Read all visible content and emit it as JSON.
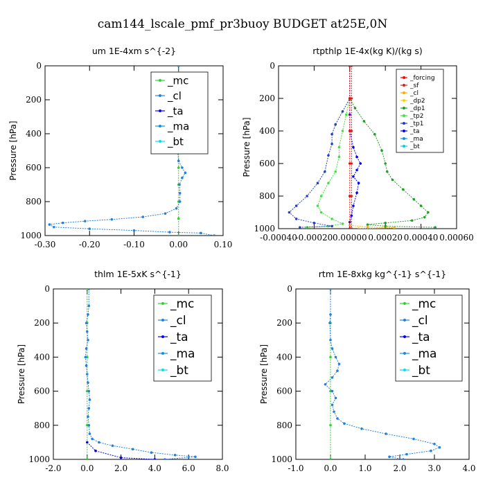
{
  "figure": {
    "title": "cam144_lscale_pmf_pr3buoy  BUDGET at25E,0N"
  },
  "colors": {
    "forcing": "#ff0000",
    "sf": "#d82020",
    "cl": "#ffaa00",
    "dp2": "#ffd000",
    "dp1": "#20a020",
    "tp2": "#40e040",
    "tp1": "#2040c0",
    "ta": "#0000ff",
    "ma": "#1090e0",
    "bt": "#00d0e0",
    "mc": "#30d030",
    "cl_blue": "#2080e0",
    "bt_cyan": "#00e0f0"
  },
  "chart_data": [
    {
      "type": "line",
      "title": "um   1E-4xm  s^{-2}",
      "ylabel": "Pressure [hPa]",
      "xlim": [
        -0.3,
        0.1
      ],
      "ylim": [
        0,
        1000
      ],
      "xticks": [
        "-0.30",
        "-0.20",
        "-0.10",
        "0.00",
        "0.10"
      ],
      "xtick_values": [
        -0.3,
        -0.2,
        -0.1,
        0.0,
        0.1
      ],
      "yticks": [
        "0",
        "200",
        "400",
        "600",
        "800",
        "1000"
      ],
      "legend": [
        "_mc",
        "_cl",
        "_ta",
        "_ma",
        "_bt"
      ],
      "series": [
        {
          "name": "_mc",
          "color": "#30d030",
          "points": [
            [
              0.0,
              0
            ],
            [
              0.0,
              100
            ],
            [
              0.0,
              200
            ],
            [
              0.0,
              300
            ],
            [
              0.0,
              400
            ],
            [
              0.0,
              500
            ],
            [
              0.0,
              600
            ],
            [
              0.0,
              700
            ],
            [
              0.0,
              800
            ],
            [
              0.0,
              900
            ],
            [
              0.0,
              1000
            ]
          ]
        },
        {
          "name": "_cl",
          "color": "#2080e0",
          "points": [
            [
              0.0,
              0
            ],
            [
              0.0,
              90
            ],
            [
              0.02,
              110
            ],
            [
              0.05,
              130
            ],
            [
              0.06,
              150
            ],
            [
              0.04,
              165
            ],
            [
              0.0,
              180
            ],
            [
              -0.01,
              200
            ],
            [
              -0.015,
              220
            ],
            [
              -0.01,
              250
            ],
            [
              0.0,
              300
            ],
            [
              0.0,
              400
            ],
            [
              -0.002,
              500
            ],
            [
              0.0,
              560
            ],
            [
              0.008,
              600
            ],
            [
              0.015,
              630
            ],
            [
              0.008,
              660
            ],
            [
              0.002,
              700
            ],
            [
              0.003,
              750
            ],
            [
              0.003,
              800
            ],
            [
              -0.005,
              840
            ],
            [
              -0.03,
              870
            ],
            [
              -0.08,
              890
            ],
            [
              -0.15,
              905
            ],
            [
              -0.21,
              915
            ],
            [
              -0.26,
              925
            ],
            [
              -0.29,
              935
            ],
            [
              -0.28,
              950
            ],
            [
              -0.2,
              960
            ],
            [
              -0.1,
              970
            ],
            [
              -0.02,
              980
            ],
            [
              0.05,
              985
            ],
            [
              0.08,
              1000
            ]
          ]
        }
      ]
    },
    {
      "type": "line",
      "title": "rtpthlp   1E-4x(kg K)/(kg s)",
      "ylabel": "Pressure [hPa]",
      "xlim": [
        -0.0004,
        0.0006
      ],
      "ylim": [
        0,
        1000
      ],
      "xticks": [
        "-0.00040",
        "-0.00020",
        "0.00000",
        "0.00020",
        "0.00040",
        "0.00060"
      ],
      "xtick_values": [
        -0.0004,
        -0.0002,
        0.0,
        0.0002,
        0.0004,
        0.0006
      ],
      "yticks": [
        "0",
        "200",
        "400",
        "600",
        "800",
        "1000"
      ],
      "legend": [
        "_forcing",
        "_sf",
        "_cl",
        "_dp2",
        "_dp1",
        "_tp2",
        "_tp1",
        "_ta",
        "_ma",
        "_bt"
      ],
      "series": [
        {
          "name": "_dp1",
          "color": "#20a020",
          "points": [
            [
              0.0,
              0
            ],
            [
              0.0,
              200
            ],
            [
              3e-05,
              260
            ],
            [
              8e-05,
              340
            ],
            [
              0.00014,
              420
            ],
            [
              0.00018,
              520
            ],
            [
              0.0002,
              600
            ],
            [
              0.00021,
              650
            ],
            [
              0.00024,
              700
            ],
            [
              0.0003,
              760
            ],
            [
              0.00036,
              820
            ],
            [
              0.0004,
              860
            ],
            [
              0.00044,
              900
            ],
            [
              0.00042,
              930
            ],
            [
              0.00035,
              950
            ],
            [
              0.0002,
              965
            ],
            [
              0.0001,
              975
            ],
            [
              0.0002,
              985
            ],
            [
              0.00048,
              992
            ]
          ]
        },
        {
          "name": "_tp2",
          "color": "#40e040",
          "points": [
            [
              0.0,
              0
            ],
            [
              0.0,
              200
            ],
            [
              -2e-05,
              300
            ],
            [
              -4e-05,
              400
            ],
            [
              -6e-05,
              500
            ],
            [
              -6e-05,
              560
            ],
            [
              -8e-05,
              650
            ],
            [
              -0.00012,
              720
            ],
            [
              -0.00016,
              800
            ],
            [
              -0.00018,
              860
            ],
            [
              -0.00016,
              900
            ],
            [
              -0.0001,
              940
            ],
            [
              -4e-05,
              970
            ],
            [
              -0.00012,
              985
            ],
            [
              -0.00024,
              992
            ]
          ]
        },
        {
          "name": "_tp1",
          "color": "#2040c0",
          "points": [
            [
              0.0,
              0
            ],
            [
              0.0,
              200
            ],
            [
              -4e-05,
              280
            ],
            [
              -8e-05,
              360
            ],
            [
              -0.0001,
              420
            ],
            [
              -0.0001,
              480
            ],
            [
              -0.00012,
              550
            ],
            [
              -0.00014,
              650
            ],
            [
              -0.00018,
              720
            ],
            [
              -0.00024,
              800
            ],
            [
              -0.0003,
              860
            ],
            [
              -0.00034,
              900
            ],
            [
              -0.0003,
              940
            ],
            [
              -0.0002,
              965
            ],
            [
              -0.0001,
              985
            ],
            [
              -0.00028,
              992
            ]
          ]
        },
        {
          "name": "_ta",
          "color": "#0000ff",
          "points": [
            [
              0.0,
              0
            ],
            [
              0.0,
              300
            ],
            [
              0.0,
              400
            ],
            [
              2e-05,
              500
            ],
            [
              4e-05,
              560
            ],
            [
              6e-05,
              600
            ],
            [
              4e-05,
              640
            ],
            [
              2e-05,
              680
            ],
            [
              5e-05,
              720
            ],
            [
              4e-05,
              780
            ],
            [
              2e-05,
              860
            ],
            [
              1e-05,
              920
            ],
            [
              0.0,
              960
            ],
            [
              0.0,
              1000
            ]
          ]
        },
        {
          "name": "_cl",
          "color": "#ffaa00",
          "points": [
            [
              0.0,
              980
            ],
            [
              0.0001,
              990
            ],
            [
              0.00025,
              995
            ],
            [
              5e-05,
              1000
            ]
          ]
        },
        {
          "name": "_forcing",
          "color": "#ff0000",
          "points": [
            [
              0.0,
              0
            ],
            [
              0.0,
              200
            ],
            [
              0.0,
              400
            ],
            [
              0.0,
              600
            ],
            [
              0.0,
              800
            ],
            [
              0.0,
              1000
            ]
          ]
        },
        {
          "name": "_sf",
          "color": "#d82020",
          "points": [
            [
              1e-05,
              0
            ],
            [
              1e-05,
              200
            ],
            [
              1e-05,
              400
            ],
            [
              1e-05,
              600
            ],
            [
              1e-05,
              800
            ],
            [
              1e-05,
              1000
            ]
          ]
        }
      ]
    },
    {
      "type": "line",
      "title": "thlm   1E-5xK  s^{-1}",
      "ylabel": "Pressure [hPa]",
      "xlim": [
        -2.0,
        8.0
      ],
      "ylim": [
        0,
        1000
      ],
      "xticks": [
        "-2.0",
        "0.0",
        "2.0",
        "4.0",
        "6.0",
        "8.0"
      ],
      "xtick_values": [
        -2.0,
        0.0,
        2.0,
        4.0,
        6.0,
        8.0
      ],
      "yticks": [
        "0",
        "200",
        "400",
        "600",
        "800",
        "1000"
      ],
      "legend": [
        "_mc",
        "_cl",
        "_ta",
        "_ma",
        "_bt"
      ],
      "series": [
        {
          "name": "_mc",
          "color": "#30d030",
          "points": [
            [
              0.0,
              0
            ],
            [
              0.0,
              200
            ],
            [
              0.0,
              400
            ],
            [
              0.0,
              600
            ],
            [
              0.0,
              800
            ],
            [
              0.0,
              1000
            ]
          ]
        },
        {
          "name": "_cl",
          "color": "#2080e0",
          "points": [
            [
              0.1,
              0
            ],
            [
              0.1,
              100
            ],
            [
              0.05,
              150
            ],
            [
              -0.05,
              200
            ],
            [
              0.0,
              250
            ],
            [
              0.05,
              300
            ],
            [
              -0.05,
              350
            ],
            [
              -0.1,
              400
            ],
            [
              -0.05,
              450
            ],
            [
              0.0,
              500
            ],
            [
              0.05,
              550
            ],
            [
              0.1,
              600
            ],
            [
              0.15,
              650
            ],
            [
              0.1,
              700
            ],
            [
              0.05,
              750
            ],
            [
              0.1,
              800
            ],
            [
              0.15,
              850
            ],
            [
              0.3,
              880
            ],
            [
              0.7,
              900
            ],
            [
              1.5,
              920
            ],
            [
              2.7,
              940
            ],
            [
              3.8,
              960
            ],
            [
              5.2,
              975
            ],
            [
              6.4,
              985
            ],
            [
              4.6,
              1000
            ]
          ]
        },
        {
          "name": "_ta",
          "color": "#0000ff",
          "points": [
            [
              0.0,
              900
            ],
            [
              0.5,
              950
            ],
            [
              2.0,
              990
            ],
            [
              4.0,
              1000
            ]
          ]
        }
      ]
    },
    {
      "type": "line",
      "title": "rtm   1E-8xkg  kg^{-1}  s^{-1}",
      "ylabel": "Pressure [hPa]",
      "xlim": [
        -1.0,
        4.0
      ],
      "ylim": [
        0,
        1000
      ],
      "xticks": [
        "-1.0",
        "0.0",
        "1.0",
        "2.0",
        "3.0",
        "4.0"
      ],
      "xtick_values": [
        -1.0,
        0.0,
        1.0,
        2.0,
        3.0,
        4.0
      ],
      "yticks": [
        "0",
        "200",
        "400",
        "600",
        "800",
        "1000"
      ],
      "legend": [
        "_mc",
        "_cl",
        "_ta",
        "_ma",
        "_bt"
      ],
      "series": [
        {
          "name": "_mc",
          "color": "#30d030",
          "points": [
            [
              0.0,
              0
            ],
            [
              0.0,
              200
            ],
            [
              0.0,
              400
            ],
            [
              0.0,
              600
            ],
            [
              0.0,
              800
            ],
            [
              0.0,
              1000
            ]
          ]
        },
        {
          "name": "_cl",
          "color": "#2080e0",
          "points": [
            [
              0.0,
              0
            ],
            [
              0.0,
              150
            ],
            [
              -0.02,
              200
            ],
            [
              0.0,
              300
            ],
            [
              0.05,
              350
            ],
            [
              0.15,
              400
            ],
            [
              0.25,
              440
            ],
            [
              0.2,
              480
            ],
            [
              0.05,
              520
            ],
            [
              -0.15,
              560
            ],
            [
              0.05,
              600
            ],
            [
              0.15,
              640
            ],
            [
              0.05,
              680
            ],
            [
              0.1,
              720
            ],
            [
              0.2,
              760
            ],
            [
              0.4,
              790
            ],
            [
              0.9,
              820
            ],
            [
              1.6,
              850
            ],
            [
              2.4,
              880
            ],
            [
              3.0,
              910
            ],
            [
              3.15,
              930
            ],
            [
              2.9,
              950
            ],
            [
              2.2,
              970
            ],
            [
              1.7,
              985
            ],
            [
              2.1,
              1000
            ]
          ]
        }
      ]
    }
  ]
}
